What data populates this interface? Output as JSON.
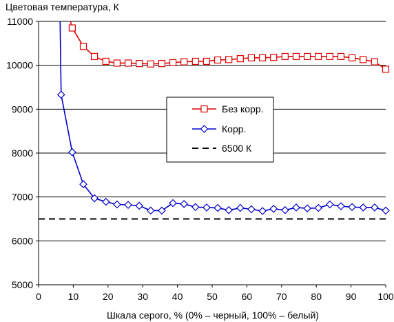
{
  "chart_data": {
    "type": "line",
    "title": "",
    "ylabel": "Цветовая температура, К",
    "xlabel": "Шкала серого, % (0% – черный, 100% – белый)",
    "xlim": [
      0,
      100
    ],
    "ylim": [
      5000,
      11000
    ],
    "x_ticks": [
      0,
      10,
      20,
      30,
      40,
      50,
      60,
      70,
      80,
      90,
      100
    ],
    "y_ticks": [
      5000,
      6000,
      7000,
      8000,
      9000,
      10000,
      11000
    ],
    "grid": "horizontal",
    "legend_position": "center-right",
    "series": [
      {
        "name": "Без корр.",
        "color": "#e00000",
        "marker": "square",
        "x": [
          9.7,
          12.9,
          16.1,
          19.4,
          22.6,
          25.8,
          29.0,
          32.3,
          35.5,
          38.7,
          41.9,
          45.2,
          48.4,
          51.6,
          54.8,
          58.1,
          61.3,
          64.5,
          67.7,
          71.0,
          74.2,
          77.4,
          80.6,
          83.9,
          87.1,
          90.3,
          93.5,
          96.8,
          100
        ],
        "y": [
          10850,
          10430,
          10200,
          10090,
          10050,
          10050,
          10040,
          10030,
          10040,
          10060,
          10080,
          10090,
          10090,
          10120,
          10130,
          10150,
          10170,
          10170,
          10180,
          10200,
          10200,
          10200,
          10200,
          10200,
          10200,
          10170,
          10130,
          10080,
          9910
        ],
        "pre_x": [
          9.2
        ],
        "pre_y": [
          11000
        ]
      },
      {
        "name": "Корр.",
        "color": "#0000cc",
        "marker": "diamond",
        "x": [
          6.5,
          9.7,
          12.9,
          16.1,
          19.4,
          22.6,
          25.8,
          29.0,
          32.3,
          35.5,
          38.7,
          41.9,
          45.2,
          48.4,
          51.6,
          54.8,
          58.1,
          61.3,
          64.5,
          67.7,
          71.0,
          74.2,
          77.4,
          80.6,
          83.9,
          87.1,
          90.3,
          93.5,
          96.8,
          100
        ],
        "y": [
          9330,
          8020,
          7290,
          6970,
          6890,
          6830,
          6820,
          6800,
          6690,
          6690,
          6860,
          6840,
          6770,
          6760,
          6750,
          6700,
          6750,
          6720,
          6680,
          6730,
          6700,
          6760,
          6740,
          6750,
          6830,
          6790,
          6770,
          6760,
          6760,
          6690
        ],
        "pre_x": [
          6.2
        ],
        "pre_y": [
          11000
        ]
      },
      {
        "name": "6500 К",
        "color": "#000000",
        "style": "dashed",
        "x": [
          0,
          100
        ],
        "y": [
          6500,
          6500
        ]
      }
    ]
  }
}
